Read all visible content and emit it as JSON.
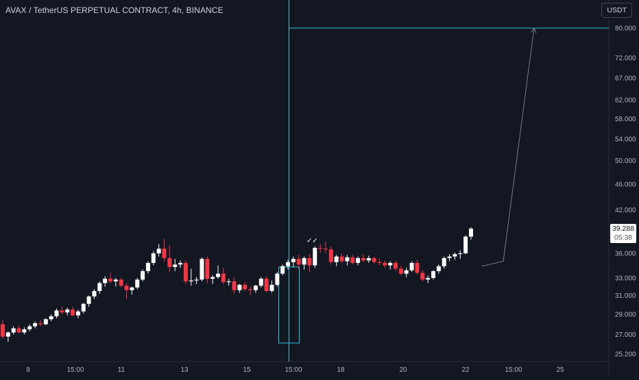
{
  "header": {
    "title": "AVAX / TetherUS PERPETUAL CONTRACT, 4h, BINANCE",
    "currency": "USDT"
  },
  "price_label": {
    "value": "39.288",
    "countdown": "05:38"
  },
  "colors": {
    "background": "#131722",
    "up": "#ffffff",
    "down": "#f23645",
    "cyan": "#2ec3e0",
    "projection": "#787b86",
    "axis_text": "#b2b5be"
  },
  "chart_data": {
    "type": "candlestick",
    "y_scale": "log",
    "ylim": [
      24.9,
      88
    ],
    "yticks": [
      "80.000",
      "72.000",
      "67.000",
      "62.000",
      "58.000",
      "54.000",
      "50.000",
      "46.000",
      "42.000",
      "36.000",
      "33.000",
      "31.000",
      "29.000",
      "27.000",
      "25.200"
    ],
    "xticks": [
      "8",
      "15:00",
      "11",
      "13",
      "15",
      "15:00",
      "18",
      "20",
      "22",
      "15:00",
      "25"
    ],
    "horizontal_level": 80.0,
    "target_box": {
      "low": 26.2,
      "high": 34.3
    },
    "projection_path": [
      [
        34.4
      ],
      [
        35.0
      ],
      [
        80.0
      ]
    ],
    "candles": [
      [
        28.0,
        28.4,
        26.6,
        26.8
      ],
      [
        26.8,
        27.3,
        26.3,
        27.2
      ],
      [
        27.2,
        27.8,
        27.0,
        27.6
      ],
      [
        27.6,
        27.9,
        27.1,
        27.2
      ],
      [
        27.2,
        27.7,
        27.0,
        27.5
      ],
      [
        27.5,
        28.0,
        27.3,
        27.8
      ],
      [
        27.8,
        28.3,
        27.6,
        28.1
      ],
      [
        28.1,
        28.4,
        27.8,
        28.0
      ],
      [
        28.0,
        28.6,
        27.9,
        28.5
      ],
      [
        28.5,
        29.0,
        28.3,
        28.8
      ],
      [
        28.8,
        29.6,
        28.6,
        29.4
      ],
      [
        29.4,
        29.8,
        29.0,
        29.2
      ],
      [
        29.2,
        29.7,
        28.9,
        29.5
      ],
      [
        29.5,
        29.8,
        28.8,
        28.9
      ],
      [
        28.9,
        29.5,
        28.6,
        29.3
      ],
      [
        29.3,
        30.2,
        29.1,
        30.1
      ],
      [
        30.1,
        31.0,
        29.8,
        30.9
      ],
      [
        30.9,
        31.7,
        30.6,
        31.5
      ],
      [
        31.5,
        32.6,
        31.2,
        32.4
      ],
      [
        32.4,
        33.2,
        32.0,
        32.9
      ],
      [
        32.9,
        33.6,
        32.4,
        32.6
      ],
      [
        32.6,
        33.0,
        32.0,
        32.8
      ],
      [
        32.8,
        33.0,
        31.9,
        32.1
      ],
      [
        32.1,
        32.4,
        30.6,
        31.6
      ],
      [
        31.6,
        32.0,
        31.1,
        31.9
      ],
      [
        31.9,
        33.0,
        31.7,
        32.8
      ],
      [
        32.8,
        34.0,
        32.6,
        33.8
      ],
      [
        33.8,
        35.0,
        33.5,
        34.8
      ],
      [
        34.8,
        36.3,
        34.5,
        36.0
      ],
      [
        36.0,
        37.2,
        35.6,
        36.6
      ],
      [
        36.6,
        37.9,
        35.0,
        35.4
      ],
      [
        35.4,
        37.0,
        33.7,
        34.3
      ],
      [
        34.3,
        35.3,
        33.8,
        34.6
      ],
      [
        34.6,
        35.1,
        34.2,
        34.8
      ],
      [
        34.8,
        35.1,
        32.3,
        32.6
      ],
      [
        32.6,
        34.1,
        32.1,
        32.7
      ],
      [
        32.7,
        33.1,
        32.3,
        32.8
      ],
      [
        32.8,
        35.5,
        32.6,
        35.3
      ],
      [
        35.3,
        35.6,
        32.4,
        32.9
      ],
      [
        32.9,
        33.3,
        32.3,
        33.1
      ],
      [
        33.1,
        34.5,
        32.9,
        33.5
      ],
      [
        33.5,
        34.2,
        32.3,
        32.5
      ],
      [
        32.5,
        32.9,
        32.1,
        32.6
      ],
      [
        32.6,
        33.1,
        31.2,
        31.6
      ],
      [
        31.6,
        32.3,
        31.3,
        32.2
      ],
      [
        32.2,
        32.5,
        31.5,
        31.7
      ],
      [
        31.7,
        32.0,
        31.0,
        31.6
      ],
      [
        31.6,
        32.2,
        31.3,
        32.1
      ],
      [
        32.1,
        33.1,
        31.9,
        32.9
      ],
      [
        32.9,
        33.2,
        31.4,
        31.5
      ],
      [
        31.5,
        32.7,
        31.3,
        32.2
      ],
      [
        32.2,
        33.7,
        32.0,
        33.5
      ],
      [
        33.5,
        34.6,
        33.3,
        34.4
      ],
      [
        34.4,
        35.2,
        34.0,
        34.9
      ],
      [
        34.9,
        35.6,
        34.3,
        35.3
      ],
      [
        35.3,
        35.8,
        34.0,
        34.6
      ],
      [
        34.6,
        35.6,
        34.0,
        35.4
      ],
      [
        35.4,
        35.9,
        33.7,
        34.5
      ],
      [
        34.5,
        36.9,
        34.2,
        36.7
      ],
      [
        36.7,
        37.2,
        36.0,
        36.6
      ],
      [
        36.6,
        37.5,
        36.0,
        36.5
      ],
      [
        36.5,
        36.9,
        34.6,
        34.9
      ],
      [
        34.9,
        35.8,
        34.4,
        35.6
      ],
      [
        35.6,
        36.0,
        34.8,
        35.0
      ],
      [
        35.0,
        35.8,
        34.5,
        35.5
      ],
      [
        35.5,
        35.8,
        34.6,
        34.8
      ],
      [
        34.8,
        35.6,
        34.5,
        35.4
      ],
      [
        35.4,
        35.9,
        34.9,
        35.1
      ],
      [
        35.1,
        35.7,
        34.8,
        35.4
      ],
      [
        35.4,
        35.6,
        34.7,
        34.9
      ],
      [
        34.9,
        35.3,
        34.5,
        34.8
      ],
      [
        34.8,
        35.1,
        34.2,
        34.5
      ],
      [
        34.5,
        35.0,
        34.0,
        34.8
      ],
      [
        34.8,
        35.1,
        33.8,
        34.1
      ],
      [
        34.1,
        34.5,
        33.3,
        33.5
      ],
      [
        33.5,
        34.2,
        33.1,
        33.9
      ],
      [
        33.9,
        35.0,
        33.7,
        34.8
      ],
      [
        34.8,
        35.2,
        33.4,
        33.6
      ],
      [
        33.6,
        33.9,
        32.6,
        32.8
      ],
      [
        32.8,
        33.3,
        32.4,
        33.0
      ],
      [
        33.0,
        33.9,
        32.8,
        33.8
      ],
      [
        33.8,
        34.6,
        33.5,
        34.4
      ],
      [
        34.4,
        35.6,
        34.1,
        35.4
      ],
      [
        35.4,
        35.9,
        35.0,
        35.6
      ],
      [
        35.6,
        36.1,
        35.2,
        35.9
      ],
      [
        35.9,
        36.4,
        35.3,
        36.0
      ],
      [
        36.0,
        38.4,
        35.9,
        38.2
      ],
      [
        38.2,
        39.5,
        37.8,
        39.3
      ]
    ]
  }
}
